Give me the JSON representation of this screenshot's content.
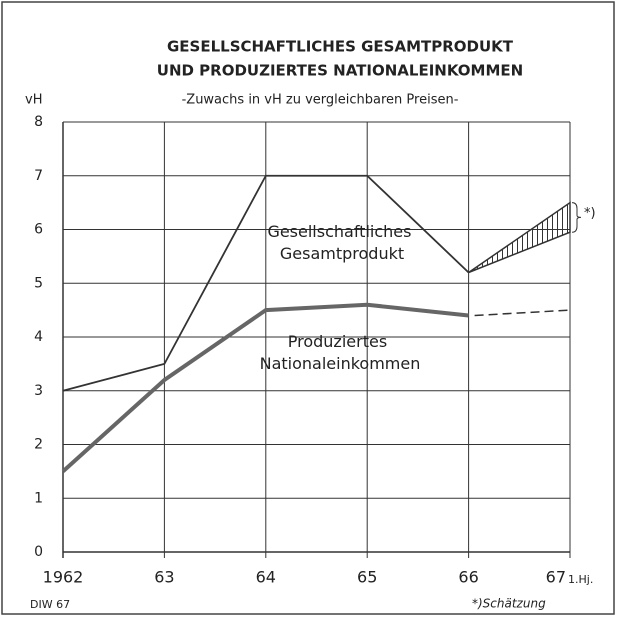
{
  "chart_data": {
    "type": "line",
    "title": [
      "GESELLSCHAFTLICHES GESAMTPRODUKT",
      "UND PRODUZIERTES NATIONALEINKOMMEN"
    ],
    "subtitle": "-Zuwachs in vH zu vergleichbaren Preisen-",
    "y_label": "vH",
    "categories": [
      "1962",
      "63",
      "64",
      "65",
      "66",
      "67"
    ],
    "period_note": "1.Hj.",
    "series": [
      {
        "name": "Gesellschaftliches Gesamtprodukt",
        "color": "#333333",
        "values": [
          3,
          3.5,
          7,
          7,
          5.2,
          null
        ],
        "estimate": {
          "low": 5.95,
          "high": 6.5
        }
      },
      {
        "name": "Produziertes Nationaleinkommen",
        "color": "#666666",
        "values": [
          1.5,
          3.2,
          4.5,
          4.6,
          4.4,
          null
        ],
        "estimate": 4.5
      }
    ],
    "ylim": [
      0,
      8
    ],
    "yticks": [
      0,
      1,
      2,
      3,
      4,
      5,
      6,
      7,
      8
    ],
    "grid": true,
    "estimate_marker": "*)",
    "footnote": "*)Schätzung",
    "source": "DIW 67"
  }
}
